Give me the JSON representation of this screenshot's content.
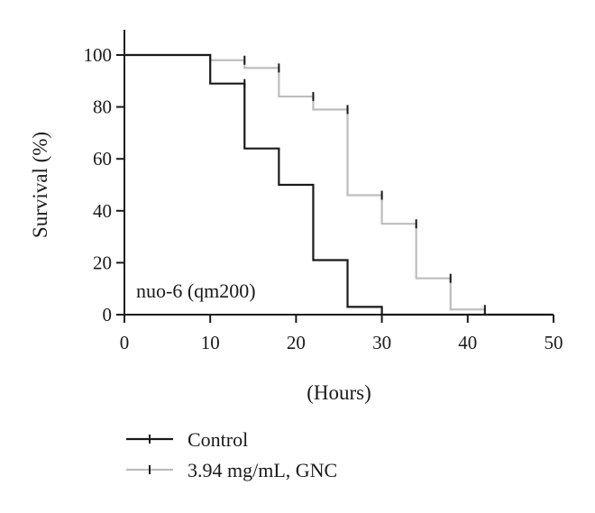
{
  "chart_data": {
    "type": "line",
    "step": true,
    "title": "",
    "xlabel": "(Hours)",
    "ylabel": "Survival (%)",
    "xlim": [
      0,
      50
    ],
    "ylim": [
      0,
      100
    ],
    "xticks": [
      0,
      10,
      20,
      30,
      40,
      50
    ],
    "yticks": [
      0,
      20,
      40,
      60,
      80,
      100
    ],
    "grid": false,
    "legend_position": "bottom-left",
    "annotation": "nuo-6 (qm200)",
    "series": [
      {
        "name": "Control",
        "color": "#1a1a1a",
        "x": [
          0,
          10,
          14,
          18,
          22,
          26,
          30
        ],
        "y": [
          100,
          89,
          64,
          50,
          21,
          3,
          0
        ],
        "censored": [
          {
            "x": 14,
            "y": 89
          }
        ]
      },
      {
        "name": "3.94 mg/mL, GNC",
        "color": "#bdbdbd",
        "x": [
          0,
          10,
          14,
          18,
          22,
          26,
          30,
          34,
          38,
          42
        ],
        "y": [
          100,
          98,
          95,
          84,
          79,
          46,
          35,
          14,
          2,
          0
        ],
        "censored": [
          {
            "x": 14,
            "y": 98
          },
          {
            "x": 18,
            "y": 95
          },
          {
            "x": 22,
            "y": 84
          },
          {
            "x": 26,
            "y": 79
          },
          {
            "x": 30,
            "y": 46
          },
          {
            "x": 34,
            "y": 35
          },
          {
            "x": 38,
            "y": 14
          },
          {
            "x": 42,
            "y": 2
          }
        ]
      }
    ]
  }
}
